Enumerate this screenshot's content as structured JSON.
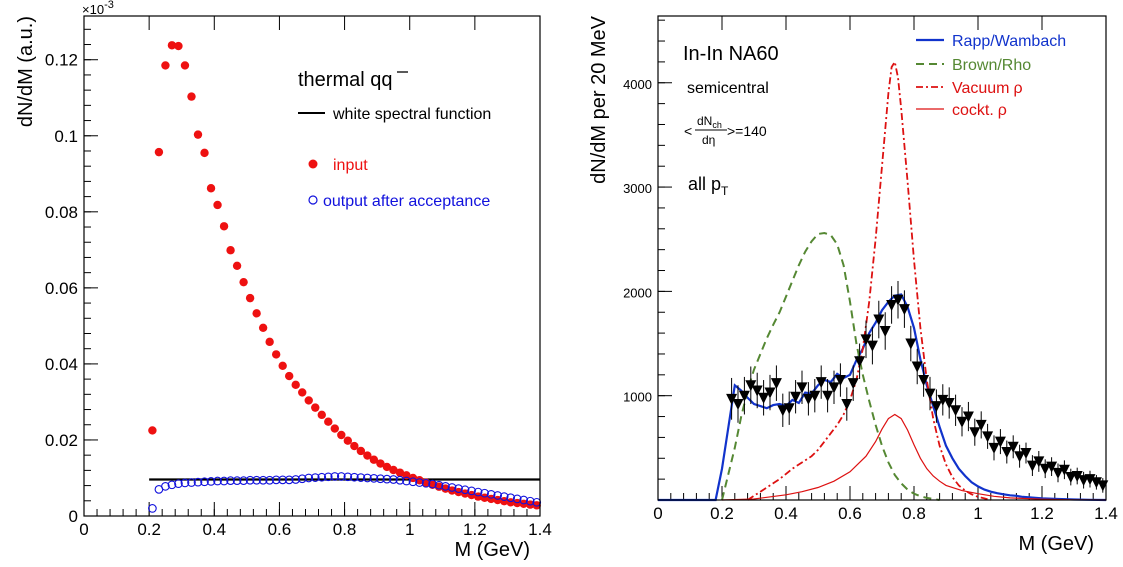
{
  "chart_data": [
    {
      "type": "scatter",
      "xlabel": "M (GeV)",
      "ylabel": "dN/dM (a.u.)",
      "exponent_label": "×10",
      "exponent_power": "-3",
      "xlim": [
        0,
        1.4
      ],
      "ylim": [
        0,
        0.1315
      ],
      "xticks": [
        "0",
        "0.2",
        "0.4",
        "0.6",
        "0.8",
        "1",
        "1.2",
        "1.4"
      ],
      "yticks": [
        "0",
        "0.02",
        "0.04",
        "0.06",
        "0.08",
        "0.1",
        "0.12"
      ],
      "annotation_prefix": "thermal q",
      "annotation_bar": "q",
      "legend": {
        "line": "white spectral function",
        "input": "input",
        "output": "output after acceptance"
      },
      "colors": {
        "input": "#ee1111",
        "output": "#1111dd",
        "line": "#000000"
      },
      "series": [
        {
          "name": "white spectral function",
          "kind": "line",
          "x": [
            0.2,
            1.4
          ],
          "y": [
            0.0096,
            0.0096
          ]
        },
        {
          "name": "input",
          "kind": "filled-circle",
          "x": [
            0.21,
            0.23,
            0.25,
            0.27,
            0.29,
            0.31,
            0.33,
            0.35,
            0.37,
            0.39,
            0.41,
            0.43,
            0.45,
            0.47,
            0.49,
            0.51,
            0.53,
            0.55,
            0.57,
            0.59,
            0.61,
            0.63,
            0.65,
            0.67,
            0.69,
            0.71,
            0.73,
            0.75,
            0.77,
            0.79,
            0.81,
            0.83,
            0.85,
            0.87,
            0.89,
            0.91,
            0.93,
            0.95,
            0.97,
            0.99,
            1.01,
            1.03,
            1.05,
            1.07,
            1.09,
            1.11,
            1.13,
            1.15,
            1.17,
            1.19,
            1.21,
            1.23,
            1.25,
            1.27,
            1.29,
            1.31,
            1.33,
            1.35,
            1.37,
            1.39
          ],
          "y": [
            0.0225,
            0.0957,
            0.1185,
            0.1238,
            0.1236,
            0.1185,
            0.1103,
            0.1003,
            0.0955,
            0.0862,
            0.0818,
            0.0762,
            0.0699,
            0.0658,
            0.0615,
            0.0573,
            0.0533,
            0.0495,
            0.0458,
            0.0425,
            0.0395,
            0.0368,
            0.0345,
            0.0325,
            0.0304,
            0.0285,
            0.0266,
            0.0248,
            0.023,
            0.0213,
            0.0198,
            0.0184,
            0.0171,
            0.0159,
            0.0148,
            0.0138,
            0.0129,
            0.0121,
            0.0114,
            0.0107,
            0.01,
            0.0094,
            0.0088,
            0.0082,
            0.0077,
            0.0072,
            0.0067,
            0.0063,
            0.0059,
            0.0055,
            0.0051,
            0.0048,
            0.0045,
            0.0042,
            0.0039,
            0.0036,
            0.0034,
            0.0032,
            0.003,
            0.0028
          ]
        },
        {
          "name": "output after acceptance",
          "kind": "open-circle",
          "x": [
            0.21,
            0.23,
            0.25,
            0.27,
            0.29,
            0.31,
            0.33,
            0.35,
            0.37,
            0.39,
            0.41,
            0.43,
            0.45,
            0.47,
            0.49,
            0.51,
            0.53,
            0.55,
            0.57,
            0.59,
            0.61,
            0.63,
            0.65,
            0.67,
            0.69,
            0.71,
            0.73,
            0.75,
            0.77,
            0.79,
            0.81,
            0.83,
            0.85,
            0.87,
            0.89,
            0.91,
            0.93,
            0.95,
            0.97,
            0.99,
            1.01,
            1.03,
            1.05,
            1.07,
            1.09,
            1.11,
            1.13,
            1.15,
            1.17,
            1.19,
            1.21,
            1.23,
            1.25,
            1.27,
            1.29,
            1.31,
            1.33,
            1.35,
            1.37,
            1.39
          ],
          "y": [
            0.002,
            0.007,
            0.0078,
            0.0082,
            0.0085,
            0.0087,
            0.0088,
            0.0089,
            0.009,
            0.0091,
            0.0092,
            0.0092,
            0.0093,
            0.0093,
            0.0093,
            0.0094,
            0.0094,
            0.0094,
            0.0094,
            0.0095,
            0.0095,
            0.0095,
            0.0096,
            0.0098,
            0.01,
            0.0101,
            0.0102,
            0.0103,
            0.0104,
            0.0104,
            0.0103,
            0.0102,
            0.0101,
            0.01,
            0.0099,
            0.0098,
            0.0097,
            0.0096,
            0.0094,
            0.0092,
            0.009,
            0.0088,
            0.0086,
            0.0084,
            0.0081,
            0.0078,
            0.0075,
            0.0072,
            0.0069,
            0.0066,
            0.0063,
            0.006,
            0.0057,
            0.0054,
            0.0051,
            0.0048,
            0.0045,
            0.0042,
            0.0039,
            0.0036
          ]
        }
      ]
    },
    {
      "type": "line",
      "xlabel": "M (GeV)",
      "ylabel": "dN/dM per 20 MeV",
      "xlim": [
        0,
        1.4
      ],
      "ylim": [
        0,
        4640
      ],
      "xticks": [
        "0",
        "0.2",
        "0.4",
        "0.6",
        "0.8",
        "1",
        "1.2",
        "1.4"
      ],
      "yticks": [
        "1000",
        "2000",
        "3000",
        "4000"
      ],
      "title": "In-In NA60",
      "subtitle": "semicentral",
      "multiplicity": {
        "lt": "<",
        "num": "dN",
        "num_sub": "ch",
        "den": "dη",
        "tail": ">=140"
      },
      "pt_label": {
        "main": "all p",
        "sub": "T"
      },
      "legend": {
        "rapp": "Rapp/Wambach",
        "brown": "Brown/Rho",
        "vacuum": "Vacuum",
        "vacuum_sym": "ρ",
        "cockt": "cockt.",
        "cockt_sym": "ρ"
      },
      "colors": {
        "rapp": "#1133cc",
        "brown": "#558833",
        "vacuum": "#dd1111",
        "cockt": "#dd1111",
        "data": "#000000"
      },
      "series": [
        {
          "name": "Rapp/Wambach",
          "x": [
            0.0,
            0.18,
            0.2,
            0.22,
            0.24,
            0.26,
            0.28,
            0.3,
            0.32,
            0.34,
            0.36,
            0.38,
            0.4,
            0.42,
            0.44,
            0.46,
            0.48,
            0.5,
            0.52,
            0.54,
            0.56,
            0.58,
            0.6,
            0.62,
            0.64,
            0.66,
            0.68,
            0.7,
            0.72,
            0.74,
            0.76,
            0.78,
            0.8,
            0.82,
            0.84,
            0.86,
            0.88,
            0.9,
            0.92,
            0.94,
            0.96,
            0.98,
            1.0,
            1.02,
            1.04,
            1.06,
            1.08,
            1.1,
            1.12,
            1.14,
            1.16,
            1.18,
            1.2,
            1.25,
            1.3,
            1.35,
            1.4
          ],
          "y": [
            0,
            0,
            300,
            700,
            1100,
            1050,
            980,
            920,
            900,
            880,
            910,
            920,
            900,
            960,
            930,
            1030,
            1020,
            1100,
            1150,
            1130,
            1210,
            1170,
            1200,
            1340,
            1450,
            1600,
            1700,
            1820,
            1900,
            1960,
            1970,
            1850,
            1650,
            1350,
            1100,
            900,
            700,
            520,
            400,
            300,
            230,
            170,
            130,
            100,
            80,
            65,
            55,
            45,
            40,
            30,
            25,
            20,
            15,
            10,
            5,
            2,
            0
          ]
        },
        {
          "name": "Brown/Rho",
          "x": [
            0.2,
            0.22,
            0.24,
            0.26,
            0.28,
            0.3,
            0.32,
            0.34,
            0.36,
            0.38,
            0.4,
            0.42,
            0.44,
            0.46,
            0.48,
            0.5,
            0.52,
            0.54,
            0.56,
            0.58,
            0.6,
            0.62,
            0.64,
            0.66,
            0.68,
            0.7,
            0.72,
            0.74,
            0.76,
            0.78,
            0.8,
            0.82,
            0.84,
            0.86,
            0.88
          ],
          "y": [
            0,
            250,
            500,
            800,
            1050,
            1250,
            1400,
            1550,
            1680,
            1800,
            1950,
            2100,
            2250,
            2380,
            2480,
            2550,
            2560,
            2540,
            2450,
            2250,
            1900,
            1500,
            1200,
            950,
            720,
            520,
            360,
            240,
            160,
            100,
            60,
            35,
            20,
            10,
            0
          ]
        },
        {
          "name": "Vacuum ρ",
          "x": [
            0.28,
            0.3,
            0.32,
            0.34,
            0.36,
            0.38,
            0.4,
            0.42,
            0.44,
            0.46,
            0.48,
            0.5,
            0.52,
            0.54,
            0.56,
            0.58,
            0.6,
            0.62,
            0.64,
            0.66,
            0.68,
            0.7,
            0.72,
            0.73,
            0.74,
            0.75,
            0.76,
            0.78,
            0.8,
            0.82,
            0.84,
            0.86,
            0.88,
            0.9,
            0.92,
            0.94,
            0.96,
            0.98,
            1.0,
            1.02,
            1.04
          ],
          "y": [
            0,
            40,
            80,
            120,
            160,
            200,
            250,
            300,
            340,
            380,
            420,
            480,
            560,
            640,
            720,
            820,
            960,
            1150,
            1450,
            1900,
            2500,
            3200,
            3900,
            4150,
            4200,
            4050,
            3750,
            3050,
            2300,
            1650,
            1150,
            780,
            520,
            340,
            220,
            140,
            90,
            55,
            30,
            15,
            0
          ]
        },
        {
          "name": "cockt. ρ",
          "x": [
            0.2,
            0.3,
            0.4,
            0.45,
            0.5,
            0.55,
            0.6,
            0.65,
            0.68,
            0.7,
            0.72,
            0.74,
            0.76,
            0.78,
            0.8,
            0.82,
            0.84,
            0.86,
            0.88,
            0.9,
            0.95,
            1.0,
            1.05,
            1.1,
            1.2,
            1.3,
            1.4
          ],
          "y": [
            0,
            10,
            50,
            80,
            120,
            180,
            270,
            420,
            560,
            680,
            780,
            820,
            780,
            670,
            530,
            400,
            300,
            230,
            180,
            140,
            90,
            60,
            35,
            20,
            8,
            2,
            0
          ]
        },
        {
          "name": "data",
          "kind": "triangle-down",
          "x": [
            0.23,
            0.25,
            0.27,
            0.29,
            0.31,
            0.33,
            0.35,
            0.37,
            0.39,
            0.41,
            0.43,
            0.45,
            0.47,
            0.49,
            0.51,
            0.53,
            0.55,
            0.57,
            0.59,
            0.61,
            0.63,
            0.65,
            0.67,
            0.69,
            0.71,
            0.73,
            0.75,
            0.77,
            0.79,
            0.81,
            0.83,
            0.85,
            0.87,
            0.89,
            0.91,
            0.93,
            0.95,
            0.97,
            0.99,
            1.01,
            1.03,
            1.05,
            1.07,
            1.09,
            1.11,
            1.13,
            1.15,
            1.17,
            1.19,
            1.21,
            1.23,
            1.25,
            1.27,
            1.29,
            1.31,
            1.33,
            1.35,
            1.37,
            1.39
          ],
          "y": [
            970,
            920,
            1000,
            1100,
            1050,
            980,
            1030,
            1120,
            860,
            880,
            990,
            1080,
            970,
            1000,
            1130,
            1000,
            1080,
            1150,
            920,
            1120,
            1330,
            1540,
            1480,
            1730,
            1620,
            1870,
            1920,
            1830,
            1500,
            1280,
            1150,
            1020,
            900,
            960,
            930,
            860,
            750,
            800,
            650,
            720,
            610,
            500,
            560,
            460,
            510,
            420,
            450,
            330,
            370,
            300,
            320,
            260,
            290,
            220,
            230,
            190,
            200,
            170,
            140
          ],
          "err": [
            200,
            180,
            180,
            180,
            170,
            170,
            170,
            170,
            160,
            160,
            160,
            160,
            160,
            160,
            160,
            160,
            160,
            160,
            160,
            170,
            170,
            180,
            180,
            180,
            180,
            180,
            180,
            180,
            170,
            170,
            160,
            160,
            160,
            150,
            150,
            150,
            140,
            140,
            130,
            130,
            120,
            120,
            120,
            110,
            110,
            110,
            100,
            100,
            100,
            90,
            90,
            90,
            90,
            80,
            80,
            80,
            80,
            70,
            70
          ]
        }
      ]
    }
  ]
}
